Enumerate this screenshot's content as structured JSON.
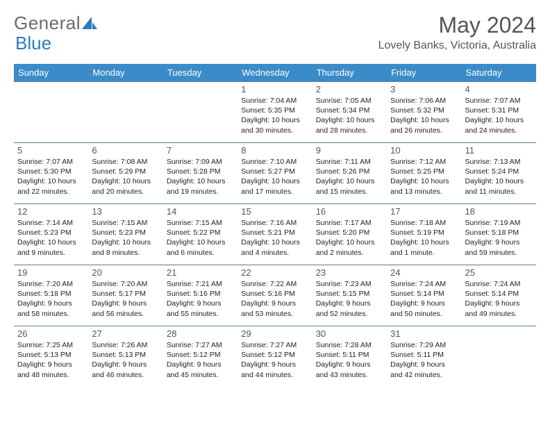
{
  "logo": {
    "text1": "General",
    "text2": "Blue"
  },
  "title": "May 2024",
  "location": "Lovely Banks, Victoria, Australia",
  "colors": {
    "header_bg": "#3b8bc9",
    "header_fg": "#ffffff",
    "row_border": "#5a7a99",
    "logo_gray": "#6a6a6a",
    "logo_blue": "#2b7bbf",
    "title_color": "#555555"
  },
  "weekdays": [
    "Sunday",
    "Monday",
    "Tuesday",
    "Wednesday",
    "Thursday",
    "Friday",
    "Saturday"
  ],
  "weeks": [
    [
      null,
      null,
      null,
      {
        "n": "1",
        "sr": "7:04 AM",
        "ss": "5:35 PM",
        "dl": "10 hours and 30 minutes."
      },
      {
        "n": "2",
        "sr": "7:05 AM",
        "ss": "5:34 PM",
        "dl": "10 hours and 28 minutes."
      },
      {
        "n": "3",
        "sr": "7:06 AM",
        "ss": "5:32 PM",
        "dl": "10 hours and 26 minutes."
      },
      {
        "n": "4",
        "sr": "7:07 AM",
        "ss": "5:31 PM",
        "dl": "10 hours and 24 minutes."
      }
    ],
    [
      {
        "n": "5",
        "sr": "7:07 AM",
        "ss": "5:30 PM",
        "dl": "10 hours and 22 minutes."
      },
      {
        "n": "6",
        "sr": "7:08 AM",
        "ss": "5:29 PM",
        "dl": "10 hours and 20 minutes."
      },
      {
        "n": "7",
        "sr": "7:09 AM",
        "ss": "5:28 PM",
        "dl": "10 hours and 19 minutes."
      },
      {
        "n": "8",
        "sr": "7:10 AM",
        "ss": "5:27 PM",
        "dl": "10 hours and 17 minutes."
      },
      {
        "n": "9",
        "sr": "7:11 AM",
        "ss": "5:26 PM",
        "dl": "10 hours and 15 minutes."
      },
      {
        "n": "10",
        "sr": "7:12 AM",
        "ss": "5:25 PM",
        "dl": "10 hours and 13 minutes."
      },
      {
        "n": "11",
        "sr": "7:13 AM",
        "ss": "5:24 PM",
        "dl": "10 hours and 11 minutes."
      }
    ],
    [
      {
        "n": "12",
        "sr": "7:14 AM",
        "ss": "5:23 PM",
        "dl": "10 hours and 9 minutes."
      },
      {
        "n": "13",
        "sr": "7:15 AM",
        "ss": "5:23 PM",
        "dl": "10 hours and 8 minutes."
      },
      {
        "n": "14",
        "sr": "7:15 AM",
        "ss": "5:22 PM",
        "dl": "10 hours and 6 minutes."
      },
      {
        "n": "15",
        "sr": "7:16 AM",
        "ss": "5:21 PM",
        "dl": "10 hours and 4 minutes."
      },
      {
        "n": "16",
        "sr": "7:17 AM",
        "ss": "5:20 PM",
        "dl": "10 hours and 2 minutes."
      },
      {
        "n": "17",
        "sr": "7:18 AM",
        "ss": "5:19 PM",
        "dl": "10 hours and 1 minute."
      },
      {
        "n": "18",
        "sr": "7:19 AM",
        "ss": "5:18 PM",
        "dl": "9 hours and 59 minutes."
      }
    ],
    [
      {
        "n": "19",
        "sr": "7:20 AM",
        "ss": "5:18 PM",
        "dl": "9 hours and 58 minutes."
      },
      {
        "n": "20",
        "sr": "7:20 AM",
        "ss": "5:17 PM",
        "dl": "9 hours and 56 minutes."
      },
      {
        "n": "21",
        "sr": "7:21 AM",
        "ss": "5:16 PM",
        "dl": "9 hours and 55 minutes."
      },
      {
        "n": "22",
        "sr": "7:22 AM",
        "ss": "5:16 PM",
        "dl": "9 hours and 53 minutes."
      },
      {
        "n": "23",
        "sr": "7:23 AM",
        "ss": "5:15 PM",
        "dl": "9 hours and 52 minutes."
      },
      {
        "n": "24",
        "sr": "7:24 AM",
        "ss": "5:14 PM",
        "dl": "9 hours and 50 minutes."
      },
      {
        "n": "25",
        "sr": "7:24 AM",
        "ss": "5:14 PM",
        "dl": "9 hours and 49 minutes."
      }
    ],
    [
      {
        "n": "26",
        "sr": "7:25 AM",
        "ss": "5:13 PM",
        "dl": "9 hours and 48 minutes."
      },
      {
        "n": "27",
        "sr": "7:26 AM",
        "ss": "5:13 PM",
        "dl": "9 hours and 46 minutes."
      },
      {
        "n": "28",
        "sr": "7:27 AM",
        "ss": "5:12 PM",
        "dl": "9 hours and 45 minutes."
      },
      {
        "n": "29",
        "sr": "7:27 AM",
        "ss": "5:12 PM",
        "dl": "9 hours and 44 minutes."
      },
      {
        "n": "30",
        "sr": "7:28 AM",
        "ss": "5:11 PM",
        "dl": "9 hours and 43 minutes."
      },
      {
        "n": "31",
        "sr": "7:29 AM",
        "ss": "5:11 PM",
        "dl": "9 hours and 42 minutes."
      },
      null
    ]
  ],
  "labels": {
    "sunrise": "Sunrise:",
    "sunset": "Sunset:",
    "daylight": "Daylight:"
  }
}
